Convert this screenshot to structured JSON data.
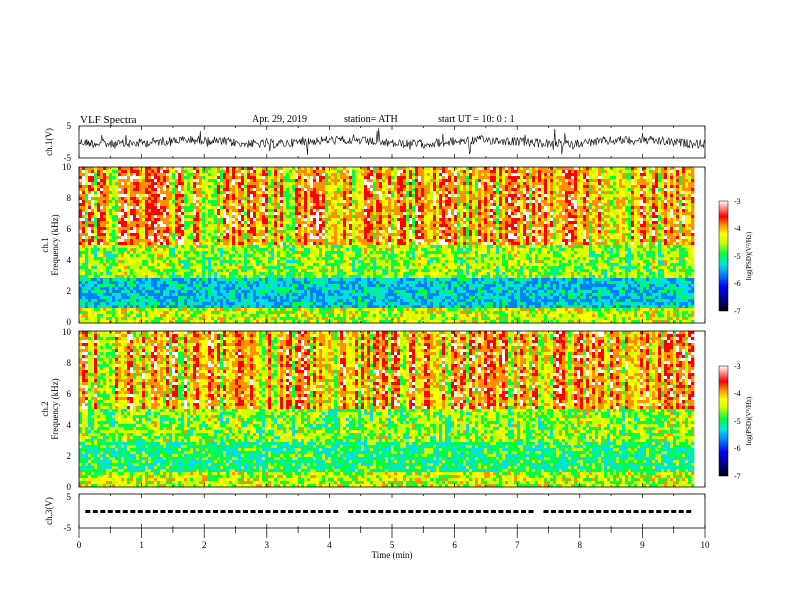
{
  "header": {
    "title": "VLF  Spectra",
    "date": "Apr. 29, 2019",
    "station": "station= ATH",
    "start": "start  UT  =    10: 0   : 1"
  },
  "chart_data": [
    {
      "type": "line",
      "panel": "ch1-waveform",
      "ylabel": "ch.1(V)",
      "ylim": [
        -5,
        5
      ],
      "yticks": [
        "5",
        "-5"
      ],
      "xlim": [
        0,
        10
      ],
      "series": [
        {
          "values": [],
          "note_values_are_noise": true
        }
      ],
      "color": "#000000"
    },
    {
      "type": "heatmap",
      "panel": "ch1-spectrogram",
      "ylabel_top": "ch.1",
      "ylabel": "Frequency  (kHz)",
      "ylim": [
        0,
        10
      ],
      "yticks": [
        "0",
        "2",
        "4",
        "6",
        "8",
        "10"
      ],
      "xlim": [
        0,
        9.8
      ],
      "colorbar": {
        "label": "log(PSD)(V²/Hz)",
        "range": [
          -7,
          -3
        ],
        "ticks": [
          "-3",
          "-4",
          "-5",
          "-6",
          "-7"
        ]
      }
    },
    {
      "type": "heatmap",
      "panel": "ch2-spectrogram",
      "ylabel_top": "ch.2",
      "ylabel": "Frequency  (kHz)",
      "ylim": [
        0,
        10
      ],
      "yticks": [
        "0",
        "2",
        "4",
        "6",
        "8",
        "10"
      ],
      "xlim": [
        0,
        9.8
      ],
      "colorbar": {
        "label": "log(PSD)(V²/Hz)",
        "range": [
          -7,
          -3
        ],
        "ticks": [
          "-3",
          "-4",
          "-5",
          "-6",
          "-7"
        ]
      }
    },
    {
      "type": "line",
      "panel": "ch3-signal",
      "ylabel": "ch.3(V)",
      "ylim": [
        -5,
        5
      ],
      "yticks": [
        "5",
        "-5"
      ],
      "xlim": [
        0,
        10
      ],
      "level": 0,
      "gaps_min": [
        [
          0.72,
          0.78
        ],
        [
          1.32,
          1.38
        ],
        [
          4.15,
          4.25
        ],
        [
          7.2,
          7.35
        ]
      ]
    }
  ],
  "xaxis": {
    "label": "Time  (min)",
    "ticks": [
      "0",
      "1",
      "2",
      "3",
      "4",
      "5",
      "6",
      "7",
      "8",
      "9",
      "10"
    ]
  },
  "colormap": [
    "#000000",
    "#00006e",
    "#0000ff",
    "#0080ff",
    "#00e0e0",
    "#00ff40",
    "#c8ff00",
    "#ffff00",
    "#ff9000",
    "#ff0000",
    "#ffffff"
  ]
}
